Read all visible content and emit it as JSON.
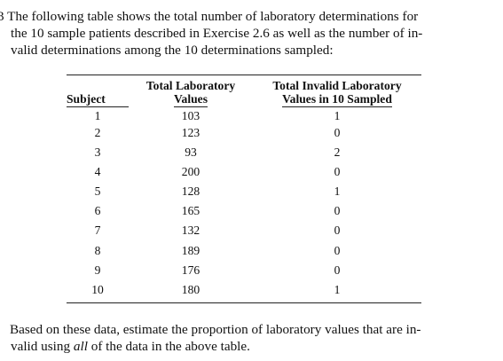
{
  "problem": {
    "number": "3",
    "intro_lines": [
      "The following table shows the total number of laboratory determinations for",
      "the 10 sample patients described in Exercise 2.6 as well as the number of in-",
      "valid determinations among the 10 determinations sampled:"
    ],
    "outro_lines": [
      "Based on these data, estimate the proportion of laboratory values that are in-"
    ],
    "outro_last": {
      "prefix": "valid using ",
      "emphasis": "all",
      "suffix": " of the data in the above table."
    }
  },
  "table": {
    "headers": {
      "subject": "Subject",
      "total_line1": "Total Laboratory",
      "total_line2": "Values",
      "invalid_line1": "Total Invalid Laboratory",
      "invalid_line2": "Values in 10 Sampled"
    },
    "rows": [
      {
        "subject": "1",
        "total": "103",
        "invalid": "1"
      },
      {
        "subject": "2",
        "total": "123",
        "invalid": "0"
      },
      {
        "subject": "3",
        "total": "93",
        "invalid": "2"
      },
      {
        "subject": "4",
        "total": "200",
        "invalid": "0"
      },
      {
        "subject": "5",
        "total": "128",
        "invalid": "1"
      },
      {
        "subject": "6",
        "total": "165",
        "invalid": "0"
      },
      {
        "subject": "7",
        "total": "132",
        "invalid": "0"
      },
      {
        "subject": "8",
        "total": "189",
        "invalid": "0"
      },
      {
        "subject": "9",
        "total": "176",
        "invalid": "0"
      },
      {
        "subject": "10",
        "total": "180",
        "invalid": "1"
      }
    ]
  }
}
